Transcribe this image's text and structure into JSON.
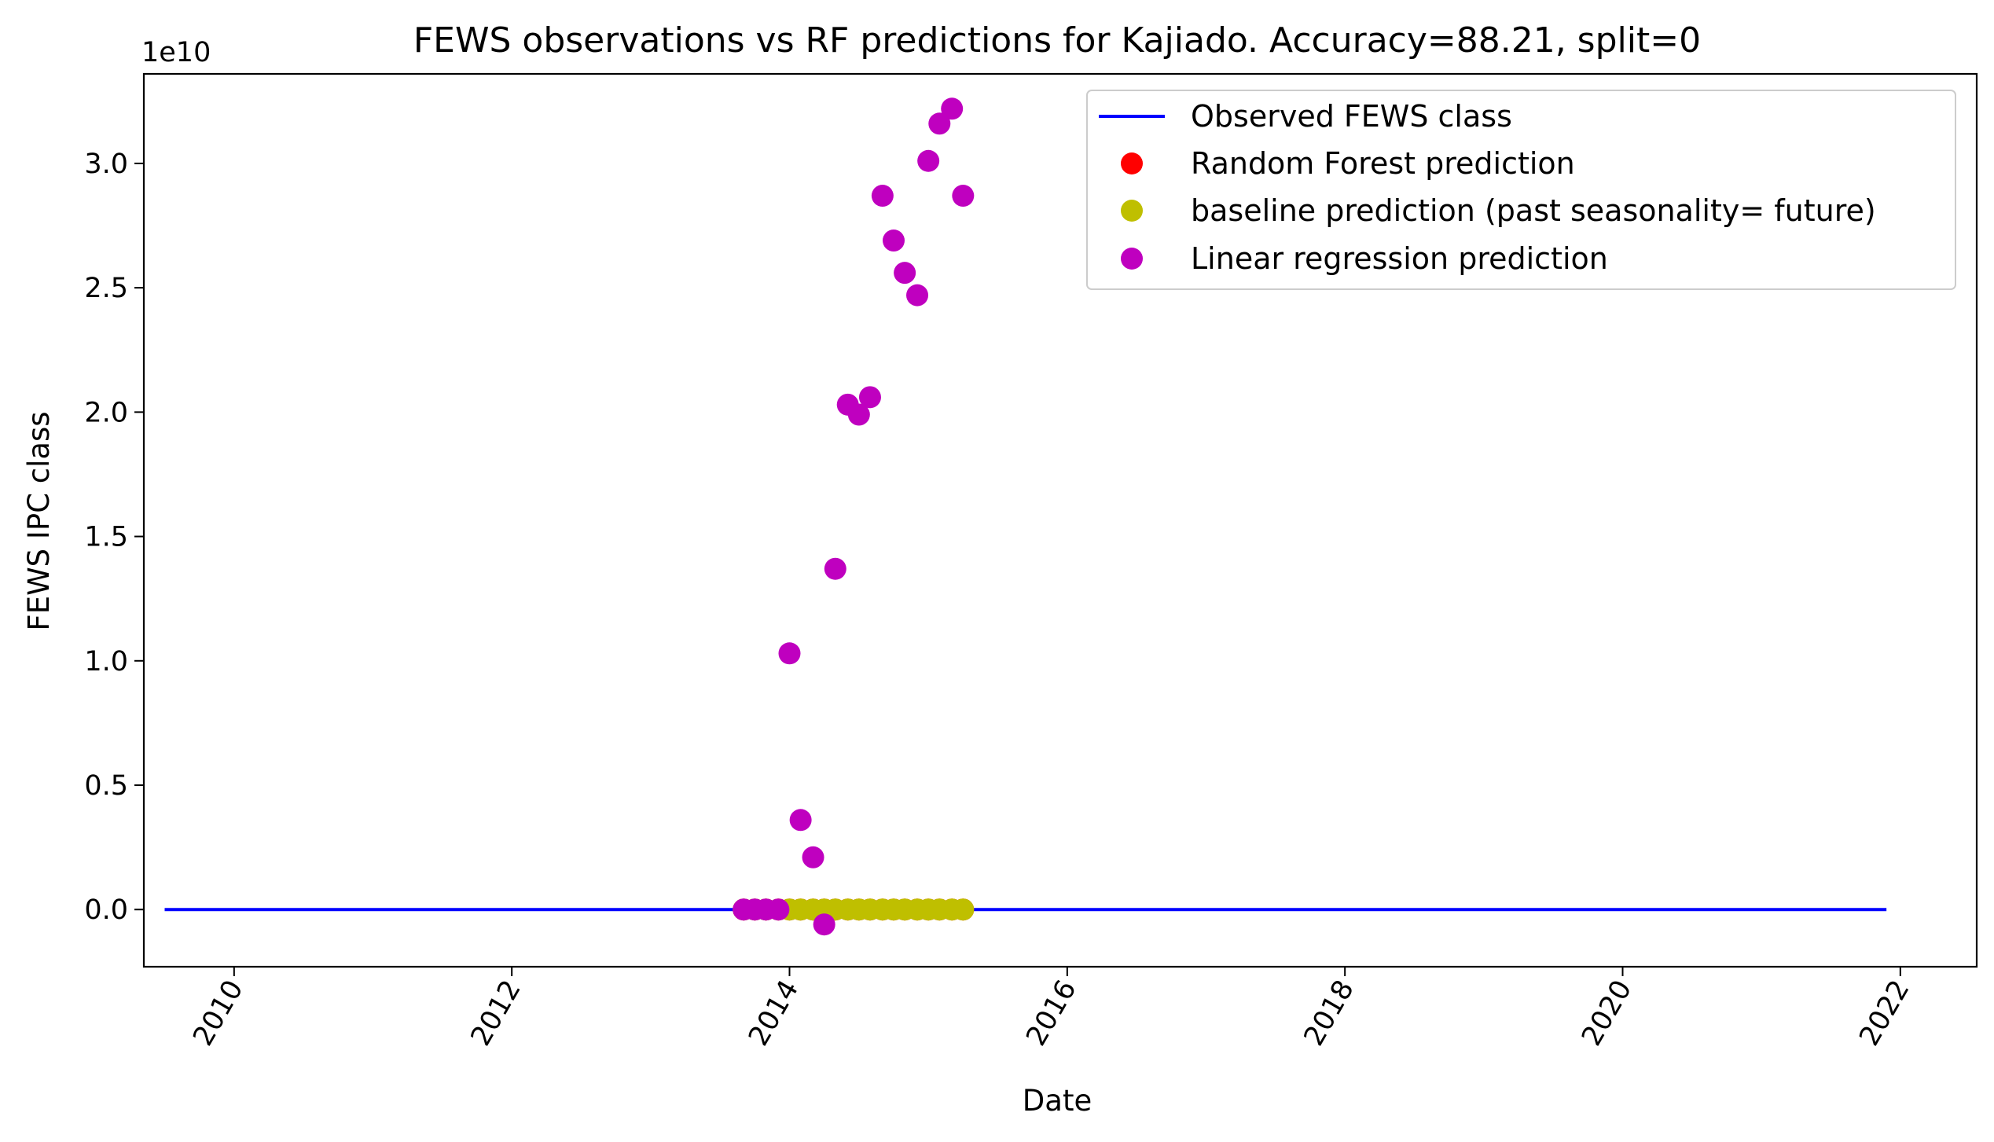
{
  "chart_data": {
    "type": "line",
    "title": "FEWS observations vs RF predictions for Kajiado. Accuracy=88.21, split=0",
    "xlabel": "Date",
    "ylabel": "FEWS IPC class",
    "y_exponent_label": "1e10",
    "y_scale": 10000000000,
    "xlim": [
      2009.35,
      2022.55
    ],
    "ylim": [
      -0.23,
      3.36
    ],
    "x_ticks": [
      2010,
      2012,
      2014,
      2016,
      2018,
      2020,
      2022
    ],
    "x_tick_labels": [
      "2010",
      "2012",
      "2014",
      "2016",
      "2018",
      "2020",
      "2022"
    ],
    "y_ticks": [
      0.0,
      0.5,
      1.0,
      1.5,
      2.0,
      2.5,
      3.0
    ],
    "y_tick_labels": [
      "0.0",
      "0.5",
      "1.0",
      "1.5",
      "2.0",
      "2.5",
      "3.0"
    ],
    "grid": false,
    "legend_position": "top-right",
    "series": [
      {
        "name": "Observed FEWS class",
        "kind": "line",
        "color": "#0000ff",
        "x": [
          2009.5,
          2021.9
        ],
        "y": [
          0,
          0
        ]
      },
      {
        "name": "Random Forest prediction",
        "kind": "scatter",
        "color": "#ff0000",
        "x": [
          2013.67,
          2013.75,
          2013.83,
          2013.92,
          2014.0,
          2014.08,
          2014.17,
          2014.25,
          2014.33,
          2014.42,
          2014.5,
          2014.58,
          2014.67,
          2014.75,
          2014.83,
          2014.92,
          2015.0,
          2015.08,
          2015.17,
          2015.25
        ],
        "y": [
          0,
          0,
          0,
          0,
          0,
          0,
          0,
          0,
          0,
          0,
          0,
          0,
          0,
          0,
          0,
          0,
          0,
          0,
          0,
          0
        ]
      },
      {
        "name": "baseline prediction (past seasonality= future)",
        "kind": "scatter",
        "color": "#bfbf00",
        "x": [
          2013.67,
          2013.75,
          2013.83,
          2013.92,
          2014.0,
          2014.08,
          2014.17,
          2014.25,
          2014.33,
          2014.42,
          2014.5,
          2014.58,
          2014.67,
          2014.75,
          2014.83,
          2014.92,
          2015.0,
          2015.08,
          2015.17,
          2015.25
        ],
        "y": [
          0,
          0,
          0,
          0,
          0,
          0,
          0,
          0,
          0,
          0,
          0,
          0,
          0,
          0,
          0,
          0,
          0,
          0,
          0,
          0
        ]
      },
      {
        "name": "Linear regression prediction",
        "kind": "scatter",
        "color": "#bf00bf",
        "x": [
          2013.67,
          2013.75,
          2013.83,
          2013.92,
          2014.0,
          2014.08,
          2014.17,
          2014.25,
          2014.33,
          2014.42,
          2014.5,
          2014.58,
          2014.67,
          2014.75,
          2014.83,
          2014.92,
          2015.0,
          2015.08,
          2015.17,
          2015.25
        ],
        "y": [
          0.0,
          0.0,
          0.0,
          0.0,
          1.03,
          0.36,
          0.21,
          -0.06,
          1.37,
          2.03,
          1.99,
          2.06,
          2.87,
          2.69,
          2.56,
          2.47,
          3.01,
          3.16,
          3.22,
          2.87
        ]
      }
    ]
  }
}
